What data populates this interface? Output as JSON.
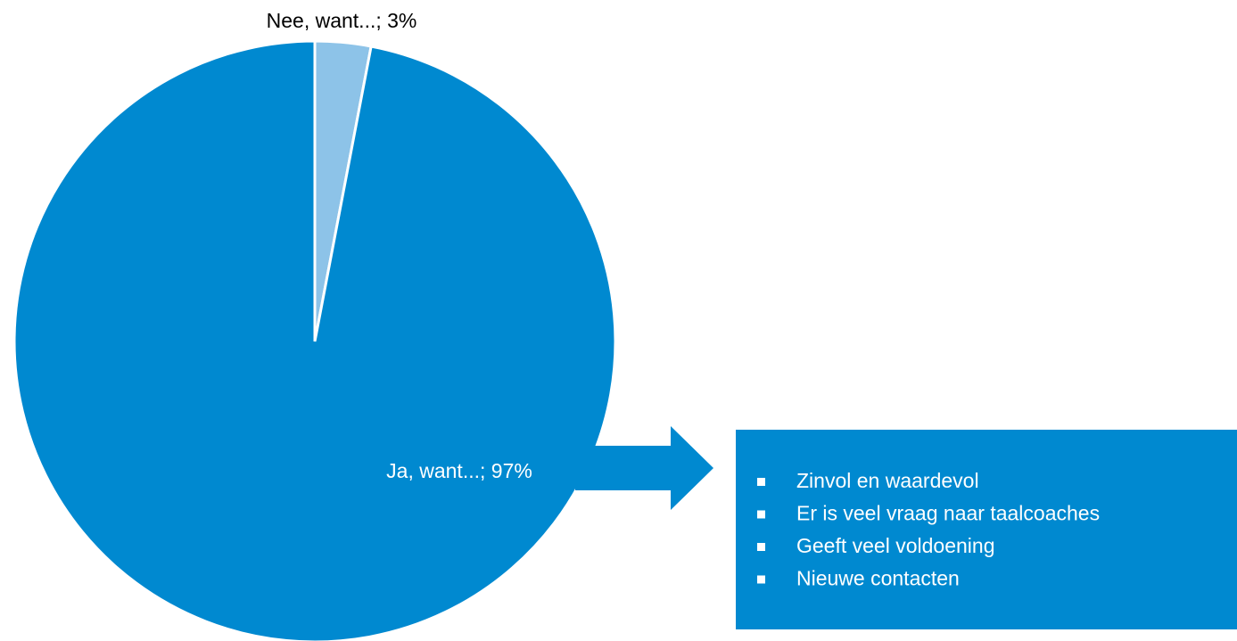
{
  "chart_data": {
    "type": "pie",
    "categories": [
      "Nee, want...",
      "Ja, want..."
    ],
    "values": [
      3,
      97
    ],
    "value_labels": [
      "Nee, want...; 3%",
      "Ja, want...; 97%"
    ],
    "colors": [
      "#8dc3e8",
      "#0089d0"
    ],
    "annotations": [
      "Zinvol en waardevol",
      "Er is veel vraag naar taalcoaches",
      "Geeft veel voldoening",
      "Nieuwe contacten"
    ]
  }
}
